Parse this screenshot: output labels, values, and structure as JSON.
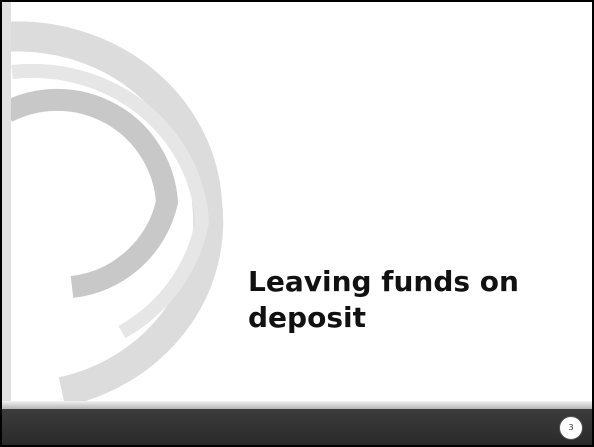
{
  "slide": {
    "title": "Leaving funds on deposit",
    "page_number": 3
  }
}
